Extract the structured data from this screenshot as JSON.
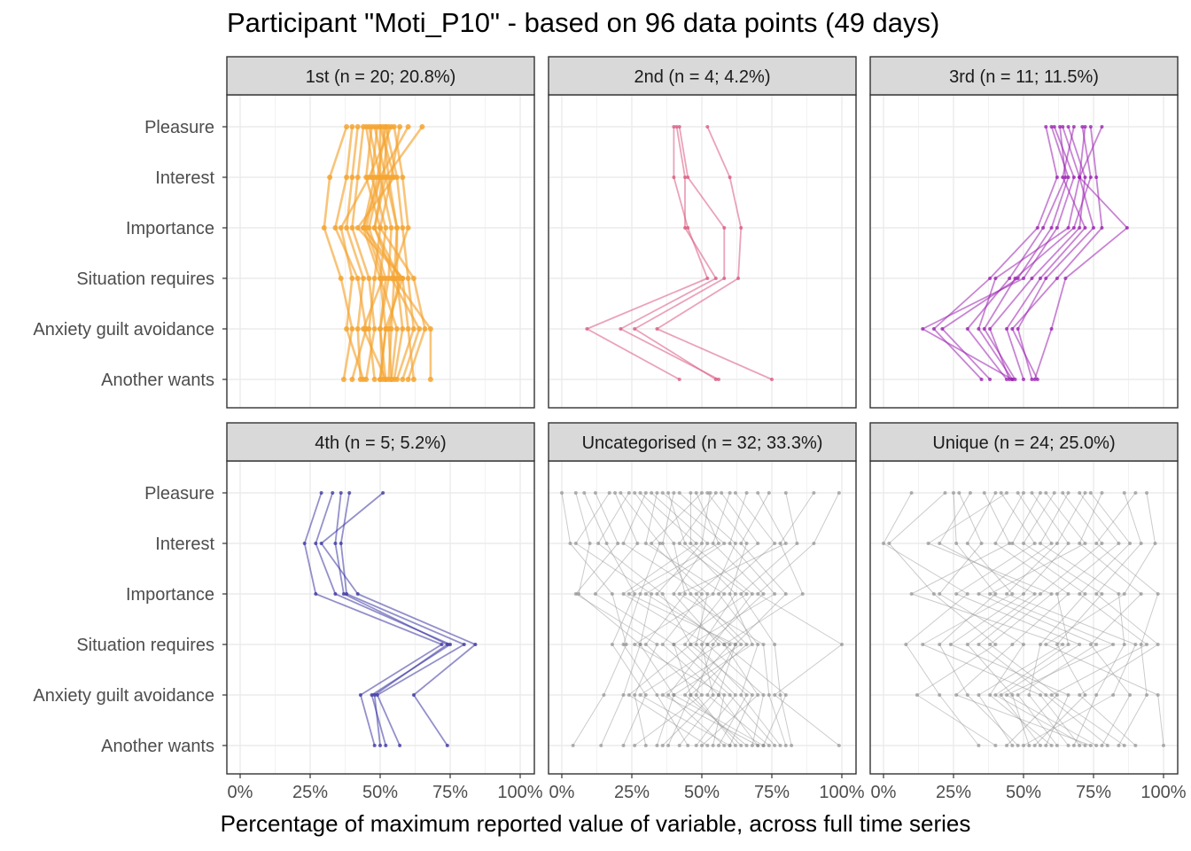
{
  "chart_data": {
    "type": "line",
    "title": "Participant \"Moti_P10\" - based on 96 data points (49 days)",
    "xlabel": "Percentage of maximum reported value of variable, across full time series",
    "ylabel": "",
    "xlim": [
      0,
      1
    ],
    "x_ticks": [
      "0%",
      "25%",
      "50%",
      "75%",
      "100%"
    ],
    "variables": [
      "Pleasure",
      "Interest",
      "Importance",
      "Situation requires",
      "Anxiety guilt avoidance",
      "Another wants"
    ],
    "grid": true,
    "panels": [
      {
        "label": "1st (n = 20; 20.8%)",
        "n": 20,
        "color": "#f5a431",
        "series": [
          {
            "values": [
              0.38,
              0.32,
              0.3,
              0.36,
              0.4,
              0.37
            ]
          },
          {
            "values": [
              0.4,
              0.38,
              0.34,
              0.42,
              0.45,
              0.4
            ]
          },
          {
            "values": [
              0.42,
              0.4,
              0.38,
              0.44,
              0.42,
              0.43
            ]
          },
          {
            "values": [
              0.44,
              0.42,
              0.4,
              0.46,
              0.48,
              0.45
            ]
          },
          {
            "values": [
              0.45,
              0.48,
              0.44,
              0.5,
              0.52,
              0.5
            ]
          },
          {
            "values": [
              0.46,
              0.5,
              0.46,
              0.52,
              0.5,
              0.52
            ]
          },
          {
            "values": [
              0.47,
              0.45,
              0.5,
              0.48,
              0.46,
              0.48
            ]
          },
          {
            "values": [
              0.48,
              0.52,
              0.48,
              0.55,
              0.54,
              0.53
            ]
          },
          {
            "values": [
              0.49,
              0.47,
              0.52,
              0.5,
              0.56,
              0.54
            ]
          },
          {
            "values": [
              0.5,
              0.55,
              0.42,
              0.58,
              0.52,
              0.5
            ]
          },
          {
            "values": [
              0.5,
              0.5,
              0.54,
              0.53,
              0.5,
              0.51
            ]
          },
          {
            "values": [
              0.51,
              0.53,
              0.56,
              0.56,
              0.58,
              0.55
            ]
          },
          {
            "values": [
              0.52,
              0.49,
              0.45,
              0.51,
              0.44,
              0.52
            ]
          },
          {
            "values": [
              0.52,
              0.56,
              0.58,
              0.6,
              0.62,
              0.56
            ]
          },
          {
            "values": [
              0.53,
              0.51,
              0.48,
              0.57,
              0.53,
              0.54
            ]
          },
          {
            "values": [
              0.54,
              0.46,
              0.36,
              0.4,
              0.38,
              0.44
            ]
          },
          {
            "values": [
              0.55,
              0.58,
              0.6,
              0.54,
              0.64,
              0.58
            ]
          },
          {
            "values": [
              0.57,
              0.54,
              0.5,
              0.62,
              0.66,
              0.6
            ]
          },
          {
            "values": [
              0.6,
              0.5,
              0.44,
              0.58,
              0.6,
              0.62
            ]
          },
          {
            "values": [
              0.65,
              0.52,
              0.56,
              0.55,
              0.68,
              0.68
            ]
          }
        ]
      },
      {
        "label": "2nd (n = 4; 4.2%)",
        "n": 4,
        "color": "#d9587f",
        "series": [
          {
            "values": [
              0.4,
              0.4,
              0.45,
              0.52,
              0.09,
              0.42
            ]
          },
          {
            "values": [
              0.41,
              0.44,
              0.44,
              0.55,
              0.21,
              0.56
            ]
          },
          {
            "values": [
              0.42,
              0.45,
              0.58,
              0.58,
              0.26,
              0.55
            ]
          },
          {
            "values": [
              0.52,
              0.6,
              0.64,
              0.63,
              0.34,
              0.75
            ]
          }
        ]
      },
      {
        "label": "3rd (n = 11; 11.5%)",
        "n": 11,
        "color": "#9a1fb0",
        "series": [
          {
            "values": [
              0.58,
              0.62,
              0.55,
              0.38,
              0.18,
              0.35
            ]
          },
          {
            "values": [
              0.6,
              0.66,
              0.6,
              0.48,
              0.21,
              0.38
            ]
          },
          {
            "values": [
              0.61,
              0.68,
              0.62,
              0.5,
              0.14,
              0.46
            ]
          },
          {
            "values": [
              0.63,
              0.65,
              0.57,
              0.45,
              0.3,
              0.44
            ]
          },
          {
            "values": [
              0.64,
              0.7,
              0.66,
              0.4,
              0.34,
              0.46
            ]
          },
          {
            "values": [
              0.66,
              0.72,
              0.7,
              0.53,
              0.38,
              0.45
            ]
          },
          {
            "values": [
              0.68,
              0.64,
              0.72,
              0.56,
              0.44,
              0.5
            ]
          },
          {
            "values": [
              0.71,
              0.74,
              0.68,
              0.47,
              0.36,
              0.47
            ]
          },
          {
            "values": [
              0.72,
              0.7,
              0.75,
              0.58,
              0.48,
              0.53
            ]
          },
          {
            "values": [
              0.74,
              0.76,
              0.78,
              0.62,
              0.46,
              0.55
            ]
          },
          {
            "values": [
              0.78,
              0.7,
              0.87,
              0.65,
              0.6,
              0.54
            ]
          }
        ]
      },
      {
        "label": "4th (n = 5; 5.2%)",
        "n": 5,
        "color": "#3a34a0",
        "series": [
          {
            "values": [
              0.29,
              0.23,
              0.27,
              0.72,
              0.43,
              0.48
            ]
          },
          {
            "values": [
              0.33,
              0.27,
              0.34,
              0.75,
              0.47,
              0.52
            ]
          },
          {
            "values": [
              0.36,
              0.34,
              0.37,
              0.74,
              0.48,
              0.5
            ]
          },
          {
            "values": [
              0.39,
              0.36,
              0.38,
              0.8,
              0.49,
              0.57
            ]
          },
          {
            "values": [
              0.51,
              0.29,
              0.42,
              0.84,
              0.62,
              0.74
            ]
          }
        ]
      },
      {
        "label": "Uncategorised (n = 32; 33.3%)",
        "n": 32,
        "color": "#8c8c8c",
        "series": [
          {
            "values": [
              0.0,
              0.03,
              0.18,
              0.23,
              0.15,
              0.04
            ]
          },
          {
            "values": [
              0.05,
              0.1,
              0.06,
              0.28,
              0.22,
              0.14
            ]
          },
          {
            "values": [
              0.08,
              0.16,
              0.26,
              0.18,
              0.3,
              0.22
            ]
          },
          {
            "values": [
              0.12,
              0.2,
              0.05,
              0.34,
              0.26,
              0.3
            ]
          },
          {
            "values": [
              0.17,
              0.05,
              0.32,
              0.28,
              0.4,
              0.34
            ]
          },
          {
            "values": [
              0.19,
              0.27,
              0.12,
              0.4,
              0.46,
              0.38
            ]
          },
          {
            "values": [
              0.21,
              0.35,
              0.28,
              0.22,
              0.34,
              0.45
            ]
          },
          {
            "values": [
              0.24,
              0.13,
              0.36,
              0.46,
              0.24,
              0.52
            ]
          },
          {
            "values": [
              0.26,
              0.4,
              0.44,
              0.3,
              0.5,
              0.26
            ]
          },
          {
            "values": [
              0.28,
              0.48,
              0.22,
              0.52,
              0.38,
              0.58
            ]
          },
          {
            "values": [
              0.3,
              0.22,
              0.5,
              0.36,
              0.56,
              0.42
            ]
          },
          {
            "values": [
              0.32,
              0.52,
              0.4,
              0.56,
              0.28,
              0.6
            ]
          },
          {
            "values": [
              0.34,
              0.3,
              0.58,
              0.44,
              0.62,
              0.48
            ]
          },
          {
            "values": [
              0.36,
              0.58,
              0.3,
              0.6,
              0.44,
              0.66
            ]
          },
          {
            "values": [
              0.38,
              0.44,
              0.62,
              0.5,
              0.54,
              0.36
            ]
          },
          {
            "values": [
              0.4,
              0.36,
              0.46,
              0.64,
              0.36,
              0.7
            ]
          },
          {
            "values": [
              0.42,
              0.62,
              0.54,
              0.26,
              0.58,
              0.54
            ]
          },
          {
            "values": [
              0.46,
              0.46,
              0.68,
              0.54,
              0.48,
              0.62
            ]
          },
          {
            "values": [
              0.48,
              0.56,
              0.24,
              0.62,
              0.52,
              0.74
            ]
          },
          {
            "values": [
              0.5,
              0.32,
              0.52,
              0.48,
              0.66,
              0.56
            ]
          },
          {
            "values": [
              0.52,
              0.66,
              0.6,
              0.68,
              0.4,
              0.72
            ]
          },
          {
            "values": [
              0.53,
              0.5,
              0.34,
              0.58,
              0.7,
              0.5
            ]
          },
          {
            "values": [
              0.55,
              0.42,
              0.66,
              0.4,
              0.6,
              0.76
            ]
          },
          {
            "values": [
              0.57,
              0.7,
              0.48,
              0.66,
              0.46,
              0.64
            ]
          },
          {
            "values": [
              0.6,
              0.54,
              0.72,
              0.52,
              0.72,
              0.68
            ]
          },
          {
            "values": [
              0.62,
              0.76,
              0.56,
              0.7,
              0.64,
              0.78
            ]
          },
          {
            "values": [
              0.66,
              0.6,
              0.76,
              0.46,
              0.68,
              0.6
            ]
          },
          {
            "values": [
              0.7,
              0.8,
              0.42,
              0.72,
              0.74,
              0.8
            ]
          },
          {
            "values": [
              0.74,
              0.64,
              0.8,
              0.62,
              0.56,
              0.7
            ]
          },
          {
            "values": [
              0.8,
              0.84,
              0.64,
              0.76,
              0.78,
              0.82
            ]
          },
          {
            "values": [
              0.9,
              0.78,
              0.86,
              0.58,
              0.8,
              0.72
            ]
          },
          {
            "values": [
              0.99,
              0.9,
              0.7,
              1.0,
              0.76,
              0.99
            ]
          }
        ]
      },
      {
        "label": "Unique (n = 24; 25.0%)",
        "n": 24,
        "color": "#8c8c8c",
        "series": [
          {
            "values": [
              0.1,
              0.0,
              0.3,
              0.08,
              0.2,
              0.34
            ]
          },
          {
            "values": [
              0.22,
              0.02,
              0.18,
              0.4,
              0.12,
              0.4
            ]
          },
          {
            "values": [
              0.25,
              0.26,
              0.4,
              0.2,
              0.3,
              0.48
            ]
          },
          {
            "values": [
              0.27,
              0.35,
              0.2,
              0.5,
              0.38,
              0.6
            ]
          },
          {
            "values": [
              0.31,
              0.2,
              0.54,
              0.3,
              0.46,
              0.52
            ]
          },
          {
            "values": [
              0.36,
              0.45,
              0.1,
              0.64,
              0.34,
              0.46
            ]
          },
          {
            "values": [
              0.4,
              0.3,
              0.46,
              0.14,
              0.56,
              0.7
            ]
          },
          {
            "values": [
              0.42,
              0.54,
              0.26,
              0.7,
              0.42,
              0.56
            ]
          },
          {
            "values": [
              0.44,
              0.16,
              0.6,
              0.38,
              0.62,
              0.44
            ]
          },
          {
            "values": [
              0.48,
              0.6,
              0.34,
              0.76,
              0.48,
              0.62
            ]
          },
          {
            "values": [
              0.5,
              0.4,
              0.66,
              0.46,
              0.26,
              0.74
            ]
          },
          {
            "values": [
              0.53,
              0.66,
              0.5,
              0.24,
              0.66,
              0.58
            ]
          },
          {
            "values": [
              0.56,
              0.46,
              0.72,
              0.56,
              0.52,
              0.66
            ]
          },
          {
            "values": [
              0.58,
              0.72,
              0.38,
              0.82,
              0.44,
              0.76
            ]
          },
          {
            "values": [
              0.61,
              0.5,
              0.78,
              0.62,
              0.72,
              0.54
            ]
          },
          {
            "values": [
              0.64,
              0.78,
              0.56,
              0.34,
              0.58,
              0.8
            ]
          },
          {
            "values": [
              0.66,
              0.56,
              0.84,
              0.86,
              0.76,
              0.68
            ]
          },
          {
            "values": [
              0.7,
              0.84,
              0.62,
              0.66,
              0.4,
              0.72
            ]
          },
          {
            "values": [
              0.72,
              0.62,
              0.44,
              0.9,
              0.82,
              0.5
            ]
          },
          {
            "values": [
              0.74,
              0.88,
              0.7,
              0.94,
              0.6,
              0.86
            ]
          },
          {
            "values": [
              0.78,
              0.7,
              0.92,
              0.74,
              0.88,
              0.78
            ]
          },
          {
            "values": [
              0.86,
              0.92,
              0.76,
              0.98,
              0.7,
              0.9
            ]
          },
          {
            "values": [
              0.9,
              0.76,
              0.98,
              0.92,
              0.94,
              0.84
            ]
          },
          {
            "values": [
              0.94,
              0.97,
              0.86,
              0.58,
              0.98,
              1.0
            ]
          }
        ]
      }
    ]
  }
}
